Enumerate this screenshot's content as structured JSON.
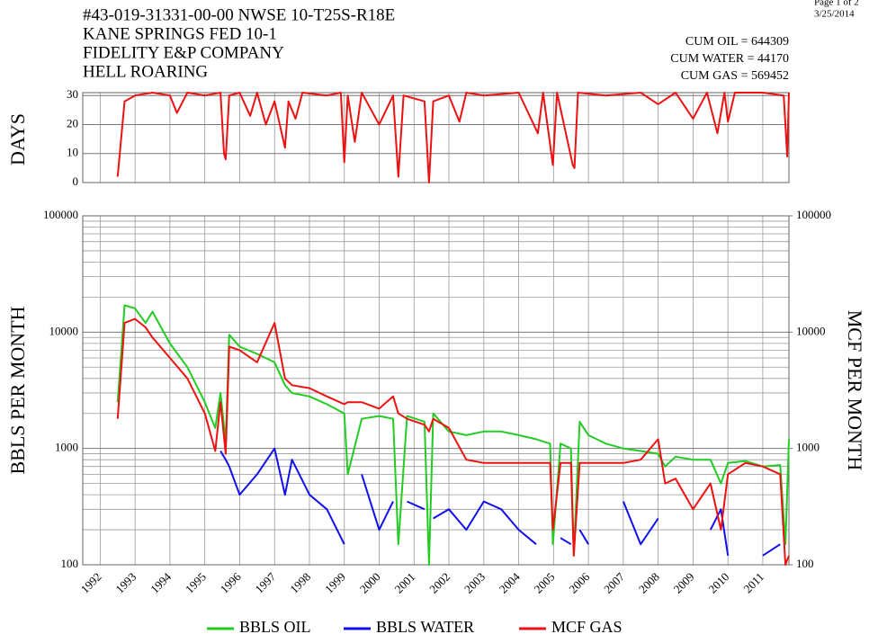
{
  "header": {
    "page": "Page 1 of 2",
    "date": "3/25/2014",
    "lines": [
      "#43-019-31331-00-00   NWSE 10-T25S-R18E",
      "KANE SPRINGS FED 10-1",
      "FIDELITY E&P COMPANY",
      "HELL ROARING"
    ],
    "cum": [
      "CUM OIL = 644309",
      "CUM WATER = 44170",
      "CUM GAS = 569452"
    ]
  },
  "chart_data": [
    {
      "type": "line",
      "ylabel": "DAYS",
      "color": "#ee1111",
      "grid": true,
      "x": [
        1992.5,
        1992.7,
        1993.0,
        1993.5,
        1994.0,
        1994.2,
        1994.5,
        1995.0,
        1995.45,
        1995.55,
        1995.6,
        1995.7,
        1996.0,
        1996.3,
        1996.5,
        1996.75,
        1997.0,
        1997.3,
        1997.4,
        1997.6,
        1997.8,
        1998.5,
        1998.9,
        1999.0,
        1999.1,
        1999.3,
        1999.5,
        2000.0,
        2000.4,
        2000.55,
        2000.7,
        2001.3,
        2001.43,
        2001.55,
        2002.0,
        2002.3,
        2002.5,
        2003.0,
        2004.0,
        2004.55,
        2004.7,
        2004.98,
        2005.1,
        2005.55,
        2005.6,
        2005.7,
        2006.5,
        2007.5,
        2008.0,
        2008.5,
        2009.0,
        2009.4,
        2009.7,
        2009.9,
        2010.0,
        2010.2,
        2011.0,
        2011.6,
        2011.7,
        2011.75
      ],
      "values": [
        2,
        28,
        30,
        31,
        30,
        24,
        31,
        30,
        31,
        10,
        8,
        30,
        31,
        23,
        31,
        20,
        28,
        12,
        28,
        22,
        31,
        30,
        31,
        7,
        30,
        14,
        31,
        20,
        30,
        2,
        30,
        28,
        0,
        28,
        30,
        21,
        31,
        30,
        31,
        17,
        31,
        6,
        31,
        6,
        5,
        31,
        30,
        31,
        27,
        31,
        22,
        31,
        17,
        31,
        21,
        31,
        31,
        30,
        9,
        31
      ],
      "xlim": [
        1991.5,
        2011.75
      ],
      "ylim": [
        0,
        31
      ],
      "yticks": [
        0,
        10,
        20,
        30
      ]
    },
    {
      "type": "line",
      "ylabel": "BBLS PER MONTH",
      "y2label": "MCF PER MONTH",
      "log": true,
      "grid": true,
      "x": [
        1992.5,
        1992.7,
        1993.0,
        1993.3,
        1993.5,
        1994.0,
        1994.5,
        1995.0,
        1995.3,
        1995.45,
        1995.6,
        1995.7,
        1996.0,
        1996.5,
        1997.0,
        1997.3,
        1997.5,
        1998.0,
        1998.5,
        1999.0,
        1999.1,
        1999.5,
        2000.0,
        2000.4,
        2000.55,
        2000.8,
        2001.3,
        2001.43,
        2001.55,
        2002.0,
        2002.5,
        2003.0,
        2003.5,
        2004.0,
        2004.5,
        2004.9,
        2004.98,
        2005.2,
        2005.5,
        2005.58,
        2005.75,
        2006.0,
        2006.5,
        2007.0,
        2007.5,
        2008.0,
        2008.2,
        2008.5,
        2009.0,
        2009.5,
        2009.8,
        2010.0,
        2010.5,
        2011.0,
        2011.5,
        2011.65,
        2011.75
      ],
      "series": [
        {
          "name": "BBLS OIL",
          "color": "#22cc22",
          "values": [
            2500,
            17000,
            16000,
            12000,
            15000,
            8000,
            5000,
            2500,
            1500,
            3000,
            1150,
            9500,
            7500,
            6500,
            5500,
            3500,
            3000,
            2800,
            2400,
            2000,
            600,
            1800,
            1900,
            1800,
            150,
            1900,
            1700,
            100,
            2000,
            1400,
            1300,
            1400,
            1400,
            1300,
            1200,
            1100,
            150,
            1100,
            1000,
            120,
            1700,
            1300,
            1100,
            1000,
            950,
            900,
            700,
            850,
            800,
            800,
            500,
            750,
            780,
            700,
            720,
            150,
            1200
          ]
        },
        {
          "name": "BBLS WATER",
          "color": "#1010ee",
          "values": [
            null,
            null,
            null,
            null,
            null,
            null,
            null,
            null,
            null,
            950,
            800,
            700,
            400,
            600,
            1000,
            400,
            800,
            400,
            300,
            150,
            null,
            600,
            200,
            350,
            null,
            350,
            300,
            null,
            250,
            300,
            200,
            350,
            300,
            200,
            150,
            null,
            null,
            170,
            150,
            null,
            200,
            150,
            null,
            350,
            150,
            250,
            null,
            200,
            null,
            200,
            300,
            120,
            null,
            120,
            150,
            null,
            null
          ]
        },
        {
          "name": "MCF GAS",
          "color": "#ee1111",
          "axis": "y2",
          "values": [
            1800,
            12000,
            13000,
            11000,
            9000,
            6000,
            4000,
            2000,
            950,
            2500,
            900,
            7500,
            7000,
            5500,
            12000,
            4000,
            3500,
            3300,
            2800,
            2400,
            2500,
            2500,
            2200,
            2800,
            2000,
            1800,
            1600,
            1400,
            1800,
            1500,
            800,
            750,
            750,
            750,
            750,
            750,
            200,
            750,
            750,
            120,
            750,
            750,
            750,
            750,
            800,
            1200,
            500,
            550,
            300,
            500,
            200,
            600,
            750,
            700,
            600,
            100,
            120
          ]
        }
      ],
      "xlim": [
        1991.5,
        2011.75
      ],
      "xticks": [
        1992,
        1993,
        1994,
        1995,
        1996,
        1997,
        1998,
        1999,
        2000,
        2001,
        2002,
        2003,
        2004,
        2005,
        2006,
        2007,
        2008,
        2009,
        2010,
        2011
      ],
      "ylim": [
        100,
        100000
      ],
      "yticks": [
        100,
        1000,
        10000,
        100000
      ],
      "y2lim": [
        100,
        100000
      ],
      "y2ticks": [
        100,
        1000,
        10000,
        100000
      ],
      "yminor": [
        200,
        300,
        400,
        500,
        600,
        700,
        800,
        900,
        2000,
        3000,
        4000,
        5000,
        6000,
        7000,
        8000,
        9000,
        20000,
        30000,
        40000,
        50000,
        60000,
        70000,
        80000,
        90000
      ]
    }
  ]
}
